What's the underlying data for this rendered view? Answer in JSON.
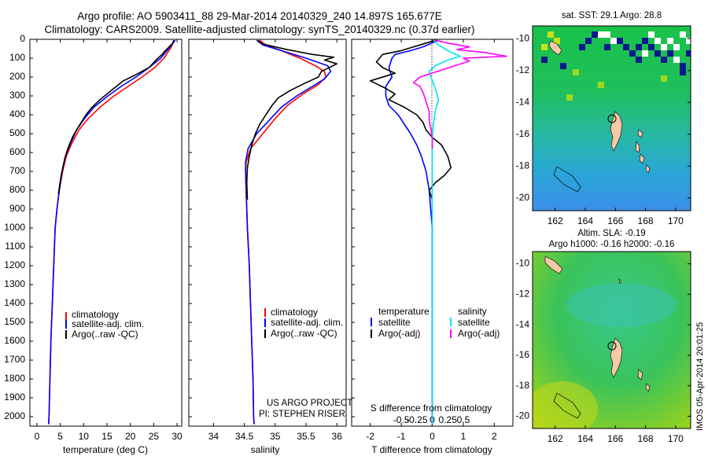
{
  "header": {
    "line1": "Argo profile: AO 5903411_88 29-Mar-2014 20140329_240 14.897S 165.677E",
    "line2": "Climatology: CARS2009. Satellite-adjusted climatology: synTS_20140329.nc (0.37d earlier)"
  },
  "map_sst": {
    "title": "sat. SST: 29.1  Argo: 28.8"
  },
  "map_sla": {
    "title1": "Altim. SLA: -0.19",
    "title2": "Argo h1000: -0.16  h2000: -0.16"
  },
  "stamp": "IMOS 05-Apr-2014 20:01:25",
  "credit": {
    "line1": "US ARGO PROJECT",
    "line2": "PI: STEPHEN RISER"
  },
  "colors": {
    "climatology": "#ff0000",
    "satellite": "#0000ff",
    "argo": "#000000",
    "sal_satellite": "#00e5ee",
    "sal_argo": "#ff00ff"
  },
  "chart_data": [
    {
      "type": "line",
      "xlabel": "temperature (deg C)",
      "ylim": [
        2050,
        0
      ],
      "xlim": [
        -1.5,
        31
      ],
      "xticks": [
        0,
        5,
        10,
        15,
        20,
        25,
        30
      ],
      "yticks": [
        0,
        100,
        200,
        300,
        400,
        500,
        600,
        700,
        800,
        900,
        1000,
        1100,
        1200,
        1300,
        1400,
        1500,
        1600,
        1700,
        1800,
        1900,
        2000
      ],
      "legend": [
        "climatology",
        "satellite-adj. clim.",
        "Argo(..raw -QC)"
      ],
      "series": [
        {
          "name": "climatology",
          "color": "#ff0000",
          "points": [
            [
              29.3,
              5
            ],
            [
              28.8,
              40
            ],
            [
              27.2,
              100
            ],
            [
              25.2,
              150
            ],
            [
              22.5,
              200
            ],
            [
              19.5,
              250
            ],
            [
              16.5,
              300
            ],
            [
              13.5,
              360
            ],
            [
              11,
              420
            ],
            [
              9,
              480
            ],
            [
              7.5,
              550
            ],
            [
              6.3,
              620
            ],
            [
              5.5,
              700
            ],
            [
              4.8,
              800
            ],
            [
              4.3,
              900
            ],
            [
              3.9,
              1000
            ],
            [
              3.6,
              1200
            ],
            [
              3.3,
              1400
            ],
            [
              3,
              1600
            ],
            [
              2.8,
              1800
            ],
            [
              2.6,
              2000
            ],
            [
              2.5,
              2040
            ]
          ]
        },
        {
          "name": "satellite-adj. clim.",
          "color": "#0000ff",
          "points": [
            [
              29.6,
              5
            ],
            [
              28.5,
              40
            ],
            [
              26.5,
              100
            ],
            [
              24,
              150
            ],
            [
              21.2,
              200
            ],
            [
              18,
              250
            ],
            [
              15.2,
              300
            ],
            [
              12.2,
              360
            ],
            [
              10.2,
              420
            ],
            [
              8.5,
              480
            ],
            [
              7.2,
              550
            ],
            [
              6.1,
              620
            ],
            [
              5.4,
              700
            ],
            [
              4.8,
              800
            ],
            [
              4.3,
              900
            ],
            [
              3.9,
              1000
            ],
            [
              3.6,
              1200
            ],
            [
              3.3,
              1400
            ],
            [
              3,
              1600
            ],
            [
              2.8,
              1800
            ],
            [
              2.6,
              2000
            ],
            [
              2.5,
              2040
            ]
          ]
        },
        {
          "name": "Argo(..raw -QC)",
          "color": "#000000",
          "points": [
            [
              29.3,
              5
            ],
            [
              29.1,
              20
            ],
            [
              27.5,
              60
            ],
            [
              26.8,
              80
            ],
            [
              25.5,
              110
            ],
            [
              24,
              150
            ],
            [
              21,
              190
            ],
            [
              18.5,
              220
            ],
            [
              16,
              270
            ],
            [
              13.5,
              320
            ],
            [
              11.8,
              360
            ],
            [
              10.5,
              400
            ],
            [
              9.5,
              440
            ],
            [
              8.5,
              480
            ],
            [
              7.6,
              520
            ],
            [
              6.6,
              580
            ],
            [
              5.9,
              640
            ],
            [
              5.2,
              720
            ],
            [
              4.6,
              820
            ]
          ]
        }
      ]
    },
    {
      "type": "line",
      "xlabel": "salinity",
      "ylim": [
        2050,
        0
      ],
      "xlim": [
        33.6,
        36.15
      ],
      "xticks": [
        34,
        34.5,
        35,
        35.5,
        36
      ],
      "legend": [
        "climatology",
        "satellite-adj. clim.",
        "Argo(..raw -QC)"
      ],
      "series": [
        {
          "name": "climatology",
          "color": "#ff0000",
          "points": [
            [
              34.75,
              5
            ],
            [
              34.85,
              30
            ],
            [
              35.1,
              60
            ],
            [
              35.4,
              100
            ],
            [
              35.65,
              140
            ],
            [
              35.8,
              170
            ],
            [
              35.82,
              200
            ],
            [
              35.7,
              240
            ],
            [
              35.45,
              290
            ],
            [
              35.2,
              350
            ],
            [
              35,
              420
            ],
            [
              34.8,
              500
            ],
            [
              34.6,
              580
            ],
            [
              34.53,
              650
            ],
            [
              34.52,
              700
            ],
            [
              34.53,
              800
            ],
            [
              34.55,
              1000
            ],
            [
              34.58,
              1200
            ],
            [
              34.6,
              1400
            ],
            [
              34.62,
              1600
            ],
            [
              34.64,
              1800
            ],
            [
              34.65,
              2000
            ],
            [
              34.66,
              2040
            ]
          ]
        },
        {
          "name": "satellite-adj. clim.",
          "color": "#0000ff",
          "points": [
            [
              34.7,
              5
            ],
            [
              34.8,
              30
            ],
            [
              35.1,
              60
            ],
            [
              35.5,
              100
            ],
            [
              35.85,
              140
            ],
            [
              35.9,
              170
            ],
            [
              35.8,
              210
            ],
            [
              35.6,
              250
            ],
            [
              35.35,
              300
            ],
            [
              35.1,
              360
            ],
            [
              34.9,
              430
            ],
            [
              34.7,
              500
            ],
            [
              34.56,
              580
            ],
            [
              34.52,
              650
            ],
            [
              34.52,
              700
            ],
            [
              34.53,
              800
            ],
            [
              34.55,
              1000
            ],
            [
              34.58,
              1200
            ],
            [
              34.6,
              1400
            ],
            [
              34.62,
              1600
            ],
            [
              34.64,
              1800
            ],
            [
              34.65,
              2000
            ],
            [
              34.66,
              2040
            ]
          ]
        },
        {
          "name": "Argo(..raw -QC)",
          "color": "#000000",
          "points": [
            [
              34.72,
              5
            ],
            [
              34.8,
              25
            ],
            [
              35.2,
              55
            ],
            [
              35.6,
              80
            ],
            [
              35.95,
              95
            ],
            [
              35.8,
              110
            ],
            [
              36,
              130
            ],
            [
              35.75,
              170
            ],
            [
              35.7,
              200
            ],
            [
              35.5,
              230
            ],
            [
              35.25,
              270
            ],
            [
              35.05,
              310
            ],
            [
              34.95,
              350
            ],
            [
              34.85,
              400
            ],
            [
              34.75,
              450
            ],
            [
              34.68,
              500
            ],
            [
              34.62,
              560
            ],
            [
              34.58,
              620
            ],
            [
              34.55,
              680
            ],
            [
              34.54,
              760
            ],
            [
              34.55,
              850
            ]
          ]
        }
      ]
    },
    {
      "type": "line",
      "xlabel": "T difference from climatology",
      "xlabel2": "S difference from climatology",
      "ylim": [
        2050,
        0
      ],
      "xlim": [
        -2.6,
        2.6
      ],
      "xticks": [
        -2,
        -1,
        0,
        1,
        2
      ],
      "sticks": [
        {
          "v": -0.5,
          "label": "-0.5"
        },
        {
          "v": -0.25,
          "label": "-0.25"
        },
        {
          "v": 0,
          "label": "0"
        },
        {
          "v": 0.25,
          "label": "0.25"
        },
        {
          "v": 0.5,
          "label": "0.5"
        }
      ],
      "legend_temperature": {
        "title": "temperature",
        "items": [
          "satellite",
          "Argo(-adj)"
        ]
      },
      "legend_salinity": {
        "title": "salinity",
        "items": [
          "satellite",
          "Argo(-adj)"
        ]
      },
      "series": [
        {
          "name": "satellite",
          "group": "temperature",
          "color": "#0000ff",
          "points": [
            [
              0.2,
              5
            ],
            [
              -0.3,
              40
            ],
            [
              -0.7,
              60
            ],
            [
              -1.2,
              80
            ],
            [
              -1.3,
              100
            ],
            [
              -1.4,
              150
            ],
            [
              -1.3,
              200
            ],
            [
              -1.5,
              250
            ],
            [
              -1.5,
              300
            ],
            [
              -1.4,
              350
            ],
            [
              -1.1,
              400
            ],
            [
              -0.9,
              450
            ],
            [
              -0.7,
              500
            ],
            [
              -0.5,
              560
            ],
            [
              -0.35,
              620
            ],
            [
              -0.2,
              700
            ],
            [
              -0.1,
              800
            ],
            [
              -0.05,
              900
            ],
            [
              0,
              1000
            ],
            [
              0,
              1200
            ],
            [
              0,
              1600
            ],
            [
              0,
              2040
            ]
          ]
        },
        {
          "name": "Argo(-adj)",
          "group": "temperature",
          "color": "#000000",
          "points": [
            [
              0.1,
              5
            ],
            [
              -0.2,
              20
            ],
            [
              -1,
              60
            ],
            [
              -1.6,
              80
            ],
            [
              -1.8,
              120
            ],
            [
              -1.6,
              150
            ],
            [
              -1.2,
              180
            ],
            [
              -2,
              220
            ],
            [
              -1.5,
              260
            ],
            [
              -1.2,
              290
            ],
            [
              -1.4,
              320
            ],
            [
              -0.9,
              360
            ],
            [
              -0.5,
              400
            ],
            [
              -0.3,
              440
            ],
            [
              -0.2,
              480
            ],
            [
              0,
              520
            ],
            [
              0.3,
              560
            ],
            [
              0.5,
              620
            ],
            [
              0.6,
              680
            ],
            [
              0.4,
              720
            ],
            [
              0.1,
              760
            ],
            [
              -0.1,
              800
            ],
            [
              0,
              850
            ]
          ]
        },
        {
          "name": "satellite",
          "group": "salinity",
          "color": "#00e5ee",
          "points": [
            [
              0.02,
              5
            ],
            [
              0.1,
              30
            ],
            [
              0.25,
              60
            ],
            [
              0.45,
              90
            ],
            [
              0.25,
              110
            ],
            [
              0.05,
              140
            ],
            [
              -0.05,
              170
            ],
            [
              -0.02,
              200
            ],
            [
              0.05,
              260
            ],
            [
              0.1,
              320
            ],
            [
              0.05,
              380
            ],
            [
              0.02,
              450
            ],
            [
              0,
              520
            ],
            [
              0,
              600
            ],
            [
              0,
              700
            ],
            [
              0,
              800
            ],
            [
              0,
              1000
            ],
            [
              0,
              1500
            ],
            [
              0,
              2040
            ]
          ]
        },
        {
          "name": "Argo(-adj)",
          "group": "salinity",
          "color": "#ff00ff",
          "points": [
            [
              0.05,
              5
            ],
            [
              0.25,
              20
            ],
            [
              0.6,
              40
            ],
            [
              0.4,
              55
            ],
            [
              0.85,
              70
            ],
            [
              1.2,
              90
            ],
            [
              0.5,
              100
            ],
            [
              0.6,
              115
            ],
            [
              -0.2,
              200
            ],
            [
              -0.3,
              230
            ],
            [
              -0.2,
              250
            ],
            [
              -0.15,
              280
            ],
            [
              -0.1,
              330
            ],
            [
              -0.05,
              380
            ],
            [
              -0.05,
              430
            ],
            [
              -0.02,
              480
            ],
            [
              0,
              530
            ],
            [
              0,
              580
            ]
          ]
        }
      ]
    }
  ],
  "maps": {
    "xticks": [
      162,
      164,
      166,
      168,
      170
    ],
    "yticks": [
      -10,
      -12,
      -14,
      -16,
      -18,
      -20
    ],
    "lon": [
      160.5,
      171
    ],
    "lat": [
      -20.8,
      -9.2
    ],
    "argo_position": {
      "lon": 165.677,
      "lat": -14.897
    }
  }
}
